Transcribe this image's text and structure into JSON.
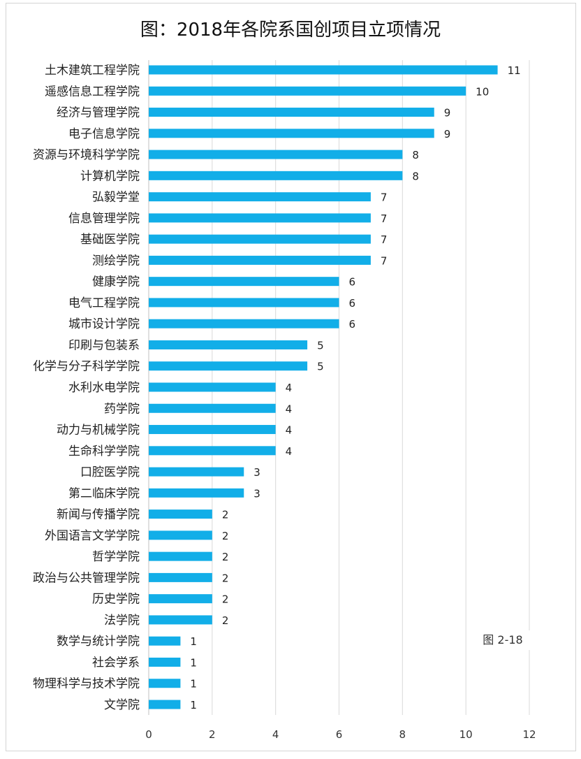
{
  "chart_data": {
    "type": "bar",
    "orientation": "horizontal",
    "title": "图：2018年各院系国创项目立项情况",
    "annotation": "图 2-18",
    "categories": [
      "土木建筑工程学院",
      "遥感信息工程学院",
      "经济与管理学院",
      "电子信息学院",
      "资源与环境科学学院",
      "计算机学院",
      "弘毅学堂",
      "信息管理学院",
      "基础医学院",
      "测绘学院",
      "健康学院",
      "电气工程学院",
      "城市设计学院",
      "印刷与包装系",
      "化学与分子科学学院",
      "水利水电学院",
      "药学院",
      "动力与机械学院",
      "生命科学学院",
      "口腔医学院",
      "第二临床学院",
      "新闻与传播学院",
      "外国语言文学学院",
      "哲学学院",
      "政治与公共管理学院",
      "历史学院",
      "法学院",
      "数学与统计学院",
      "社会学系",
      "物理科学与技术学院",
      "文学院"
    ],
    "values": [
      11,
      10,
      9,
      9,
      8,
      8,
      7,
      7,
      7,
      7,
      6,
      6,
      6,
      5,
      5,
      4,
      4,
      4,
      4,
      3,
      3,
      2,
      2,
      2,
      2,
      2,
      2,
      1,
      1,
      1,
      1
    ],
    "xlim": [
      0,
      12
    ],
    "xticks": [
      0,
      2,
      4,
      6,
      8,
      10,
      12
    ],
    "grid": true,
    "data_labels": true,
    "bar_color": "#12aee8",
    "xlabel": "",
    "ylabel": ""
  }
}
